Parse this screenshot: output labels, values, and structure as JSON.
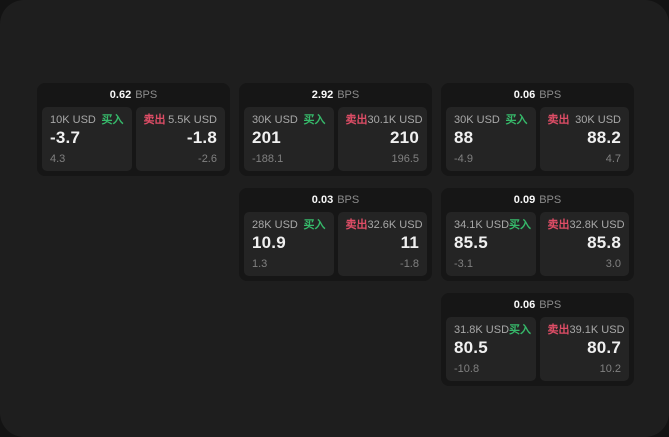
{
  "labels": {
    "bps": "BPS",
    "buy": "买入",
    "sell": "卖出"
  },
  "theme": {
    "outer_bg": "#131313",
    "panel_bg": "#1e1e1e",
    "card_bg": "#161616",
    "tile_bg": "#242424",
    "buy_color": "#36b96a",
    "sell_color": "#de4d66",
    "value_color": "#f0f0f0",
    "label_color": "#a8a8a8",
    "sub_color": "#808080",
    "bps_label_color": "#8c8c8c"
  },
  "cards": [
    {
      "col": 1,
      "row": 1,
      "bps": "0.62",
      "buy": {
        "amount": "10K USD",
        "value": "-3.7",
        "sub": "4.3"
      },
      "sell": {
        "amount": "5.5K USD",
        "value": "-1.8",
        "sub": "-2.6"
      }
    },
    {
      "col": 2,
      "row": 1,
      "bps": "2.92",
      "buy": {
        "amount": "30K USD",
        "value": "201",
        "sub": "-188.1"
      },
      "sell": {
        "amount": "30.1K USD",
        "value": "210",
        "sub": "196.5"
      }
    },
    {
      "col": 3,
      "row": 1,
      "bps": "0.06",
      "buy": {
        "amount": "30K USD",
        "value": "88",
        "sub": "-4.9"
      },
      "sell": {
        "amount": "30K USD",
        "value": "88.2",
        "sub": "4.7"
      }
    },
    {
      "col": 2,
      "row": 2,
      "bps": "0.03",
      "buy": {
        "amount": "28K USD",
        "value": "10.9",
        "sub": "1.3"
      },
      "sell": {
        "amount": "32.6K USD",
        "value": "11",
        "sub": "-1.8"
      }
    },
    {
      "col": 3,
      "row": 2,
      "bps": "0.09",
      "buy": {
        "amount": "34.1K USD",
        "value": "85.5",
        "sub": "-3.1"
      },
      "sell": {
        "amount": "32.8K USD",
        "value": "85.8",
        "sub": "3.0"
      }
    },
    {
      "col": 3,
      "row": 3,
      "bps": "0.06",
      "buy": {
        "amount": "31.8K USD",
        "value": "80.5",
        "sub": "-10.8"
      },
      "sell": {
        "amount": "39.1K USD",
        "value": "80.7",
        "sub": "10.2"
      }
    }
  ]
}
